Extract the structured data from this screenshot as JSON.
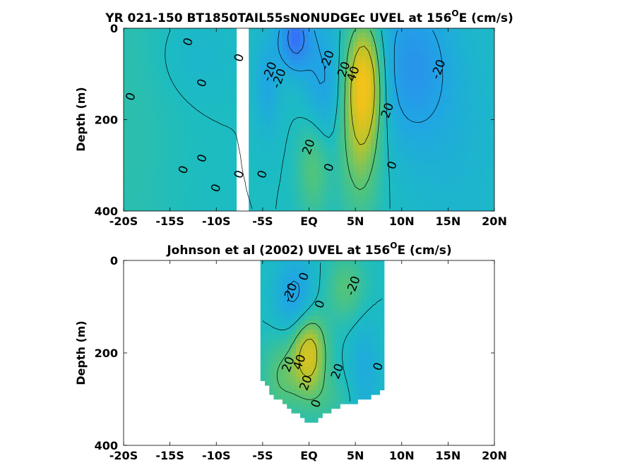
{
  "chart_data": [
    {
      "type": "heatmap",
      "title": "YR 021-150 BT1850TAIL55sNONUDGEc UVEL at 156",
      "title_superscript": "O",
      "title_suffix": "E (cm/s)",
      "ylabel": "Depth (m)",
      "xlim": [
        -20,
        20
      ],
      "ylim": [
        400,
        0
      ],
      "x_ticks": [
        -20,
        -15,
        -10,
        -5,
        0,
        5,
        10,
        15,
        20
      ],
      "x_tick_labels": [
        "-20S",
        "-15S",
        "-10S",
        "-5S",
        "EQ",
        "5N",
        "10N",
        "15N",
        "20N"
      ],
      "y_ticks": [
        0,
        200,
        400
      ],
      "y_tick_labels": [
        "0",
        "200",
        "400"
      ],
      "color_stops": [
        {
          "v": -60,
          "c": "#3c5bff"
        },
        {
          "v": -40,
          "c": "#2f86ef"
        },
        {
          "v": -20,
          "c": "#20a5e4"
        },
        {
          "v": 0,
          "c": "#1cbcc2"
        },
        {
          "v": 20,
          "c": "#52c47a"
        },
        {
          "v": 40,
          "c": "#b9c42c"
        },
        {
          "v": 60,
          "c": "#f0c21a"
        }
      ],
      "blobs": [
        {
          "x": -20,
          "y": 200,
          "sx": 4,
          "sy": 400,
          "v": 6
        },
        {
          "x": -12,
          "y": 60,
          "sx": 3,
          "sy": 60,
          "v": -6
        },
        {
          "x": -1.5,
          "y": 20,
          "sx": 1.2,
          "sy": 50,
          "v": -48
        },
        {
          "x": 1.5,
          "y": 120,
          "sx": 1.5,
          "sy": 100,
          "v": -22
        },
        {
          "x": -4.5,
          "y": 120,
          "sx": 1,
          "sy": 80,
          "v": -18
        },
        {
          "x": 6,
          "y": 110,
          "sx": 1.4,
          "sy": 90,
          "v": 56
        },
        {
          "x": 5.5,
          "y": 250,
          "sx": 1.6,
          "sy": 120,
          "v": 28
        },
        {
          "x": 0.5,
          "y": 300,
          "sx": 1.2,
          "sy": 80,
          "v": 22
        },
        {
          "x": 11,
          "y": 80,
          "sx": 3,
          "sy": 120,
          "v": -28
        },
        {
          "x": 16,
          "y": 250,
          "sx": 4,
          "sy": 200,
          "v": -8
        }
      ],
      "mask": [
        [
          -7.8,
          -6.5,
          0,
          400
        ]
      ],
      "contour_labels": [
        {
          "x": -13,
          "y": 30,
          "text": "0"
        },
        {
          "x": -7.5,
          "y": 65,
          "text": "0"
        },
        {
          "x": -19.2,
          "y": 150,
          "text": "0"
        },
        {
          "x": -11.5,
          "y": 120,
          "text": "0"
        },
        {
          "x": -4.2,
          "y": 95,
          "text": "-20"
        },
        {
          "x": -3.2,
          "y": 110,
          "text": "-20"
        },
        {
          "x": 2,
          "y": 70,
          "text": "-20"
        },
        {
          "x": 3.8,
          "y": 90,
          "text": "20"
        },
        {
          "x": 4.8,
          "y": 100,
          "text": "40"
        },
        {
          "x": 14,
          "y": 90,
          "text": "-20"
        },
        {
          "x": 8.5,
          "y": 180,
          "text": "20"
        },
        {
          "x": 0,
          "y": 260,
          "text": "20"
        },
        {
          "x": -11.5,
          "y": 285,
          "text": "0"
        },
        {
          "x": -13.5,
          "y": 310,
          "text": "0"
        },
        {
          "x": -10,
          "y": 350,
          "text": "0"
        },
        {
          "x": -7.5,
          "y": 320,
          "text": "0"
        },
        {
          "x": -5,
          "y": 320,
          "text": "0"
        },
        {
          "x": 2.2,
          "y": 305,
          "text": "0"
        },
        {
          "x": 9,
          "y": 300,
          "text": "0"
        }
      ]
    },
    {
      "type": "heatmap",
      "title": "Johnson et al (2002) UVEL at 156",
      "title_superscript": "O",
      "title_suffix": "E (cm/s)",
      "ylabel": "Depth (m)",
      "xlim": [
        -20,
        20
      ],
      "ylim": [
        400,
        0
      ],
      "x_ticks": [
        -20,
        -15,
        -10,
        -5,
        0,
        5,
        10,
        15,
        20
      ],
      "x_tick_labels": [
        "-20S",
        "-15S",
        "-10S",
        "-5S",
        "EQ",
        "5N",
        "10N",
        "15N",
        "20N"
      ],
      "y_ticks": [
        0,
        200,
        400
      ],
      "y_tick_labels": [
        "0",
        "200",
        "400"
      ],
      "data_extent": {
        "x": [
          -5,
          8
        ],
        "bottom_depth": [
          [
            -5,
            260
          ],
          [
            -4,
            290
          ],
          [
            -2,
            320
          ],
          [
            0,
            355
          ],
          [
            2,
            330
          ],
          [
            4,
            310
          ],
          [
            6,
            300
          ],
          [
            8,
            280
          ]
        ]
      },
      "blobs": [
        {
          "x": 0,
          "y": 200,
          "sx": 1.3,
          "sy": 60,
          "v": 50
        },
        {
          "x": -1.5,
          "y": 80,
          "sx": 1.5,
          "sy": 60,
          "v": -25
        },
        {
          "x": 4,
          "y": 60,
          "sx": 1.5,
          "sy": 50,
          "v": 20
        },
        {
          "x": 6,
          "y": 240,
          "sx": 1.2,
          "sy": 80,
          "v": -15
        },
        {
          "x": -3,
          "y": 250,
          "sx": 1.5,
          "sy": 60,
          "v": 20
        },
        {
          "x": 2,
          "y": 300,
          "sx": 2,
          "sy": 40,
          "v": 10
        }
      ],
      "contour_labels": [
        {
          "x": -0.5,
          "y": 35,
          "text": "0"
        },
        {
          "x": -2,
          "y": 70,
          "text": "-20"
        },
        {
          "x": 1.2,
          "y": 95,
          "text": "0"
        },
        {
          "x": 4.8,
          "y": 55,
          "text": "-20"
        },
        {
          "x": -2.2,
          "y": 225,
          "text": "20"
        },
        {
          "x": -1,
          "y": 220,
          "text": "40"
        },
        {
          "x": -0.3,
          "y": 265,
          "text": "20"
        },
        {
          "x": 3.1,
          "y": 240,
          "text": "20"
        },
        {
          "x": 7.5,
          "y": 230,
          "text": "0"
        },
        {
          "x": 0.8,
          "y": 310,
          "text": "0"
        }
      ]
    }
  ]
}
